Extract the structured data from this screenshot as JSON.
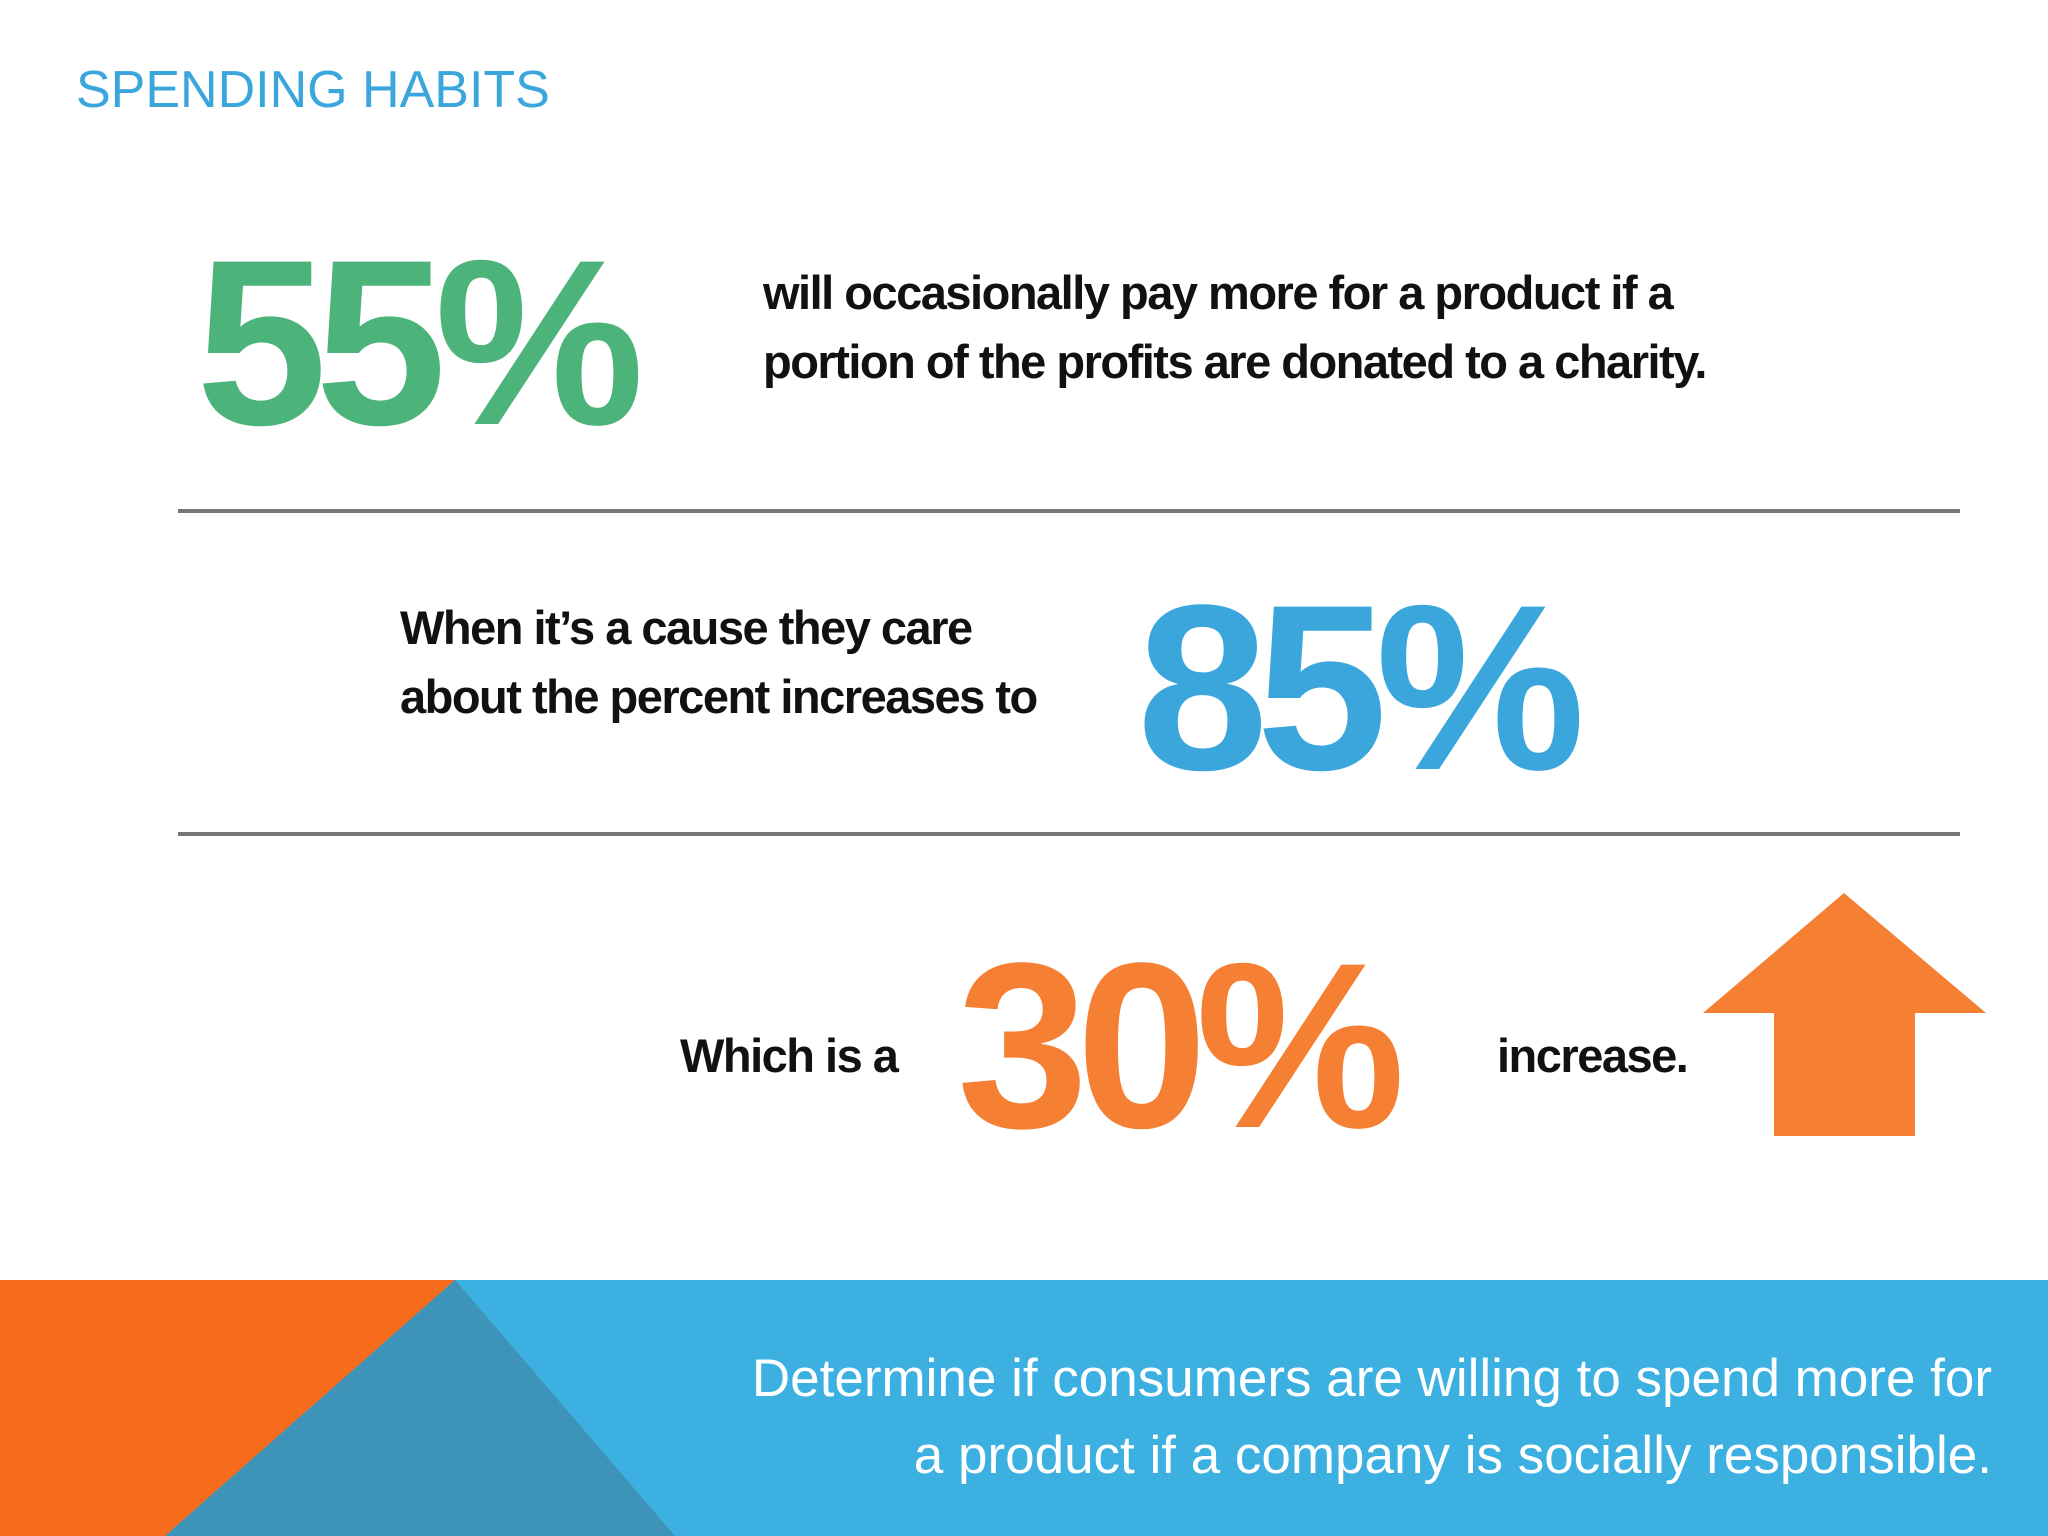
{
  "heading": "SPENDING HABITS",
  "stat_1": {
    "value": "55%",
    "line_1": "will occasionally pay more for a product if a",
    "line_2": "portion of the profits are donated to a charity."
  },
  "stat_2": {
    "line_1": "When it’s a cause they care",
    "line_2": "about the percent increases to",
    "value": "85%"
  },
  "stat_3": {
    "prefix": "Which is a",
    "value": "30%",
    "suffix": "increase."
  },
  "footer": {
    "line_1": "Determine if consumers are willing to spend more for",
    "line_2": "a product if a company is socially responsible."
  },
  "colors": {
    "heading_blue": "#3aa6dc",
    "green": "#4cb37a",
    "blue": "#3aa6dc",
    "orange": "#f57f33",
    "footer_blue": "#3cb0e0",
    "footer_orange": "#f76b1c",
    "footer_dark_blue": "#3e93b8"
  },
  "icons": {
    "arrow": "up-arrow-icon"
  }
}
